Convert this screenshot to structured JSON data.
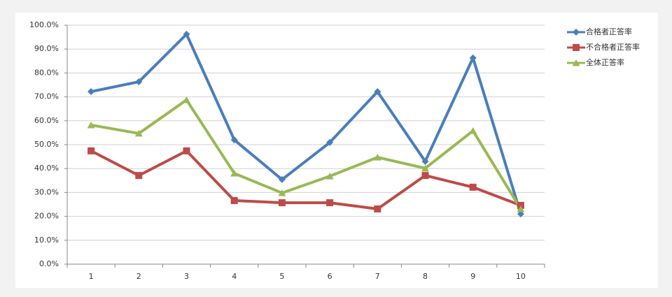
{
  "chart_data": {
    "type": "line",
    "categories": [
      "1",
      "2",
      "3",
      "4",
      "5",
      "6",
      "7",
      "8",
      "9",
      "10"
    ],
    "series": [
      {
        "name": "合格者正答率",
        "color": "#4a7ebb",
        "marker": "diamond",
        "values": [
          72.2,
          76.3,
          96.2,
          52.0,
          35.4,
          50.9,
          72.2,
          43.0,
          86.3,
          21.0
        ]
      },
      {
        "name": "不合格者正答率",
        "color": "#be4b48",
        "marker": "square",
        "values": [
          47.4,
          37.1,
          47.4,
          26.6,
          25.7,
          25.7,
          23.1,
          37.1,
          32.2,
          24.6
        ]
      },
      {
        "name": "全体正答率",
        "color": "#98b954",
        "marker": "triangle",
        "values": [
          58.2,
          54.7,
          68.7,
          38.0,
          29.8,
          36.8,
          44.7,
          40.1,
          55.8,
          23.1
        ]
      }
    ],
    "ylim": [
      0,
      100
    ],
    "yticks": [
      {
        "value": 0,
        "label": "0.0%"
      },
      {
        "value": 10,
        "label": "10.0%"
      },
      {
        "value": 20,
        "label": "20.0%"
      },
      {
        "value": 30,
        "label": "30.0%"
      },
      {
        "value": 40,
        "label": "40.0%"
      },
      {
        "value": 50,
        "label": "50.0%"
      },
      {
        "value": 60,
        "label": "60.0%"
      },
      {
        "value": 70,
        "label": "70.0%"
      },
      {
        "value": 80,
        "label": "80.0%"
      },
      {
        "value": 90,
        "label": "90.0%"
      },
      {
        "value": 100,
        "label": "100.0%"
      }
    ],
    "grid": true,
    "legend": "right"
  }
}
